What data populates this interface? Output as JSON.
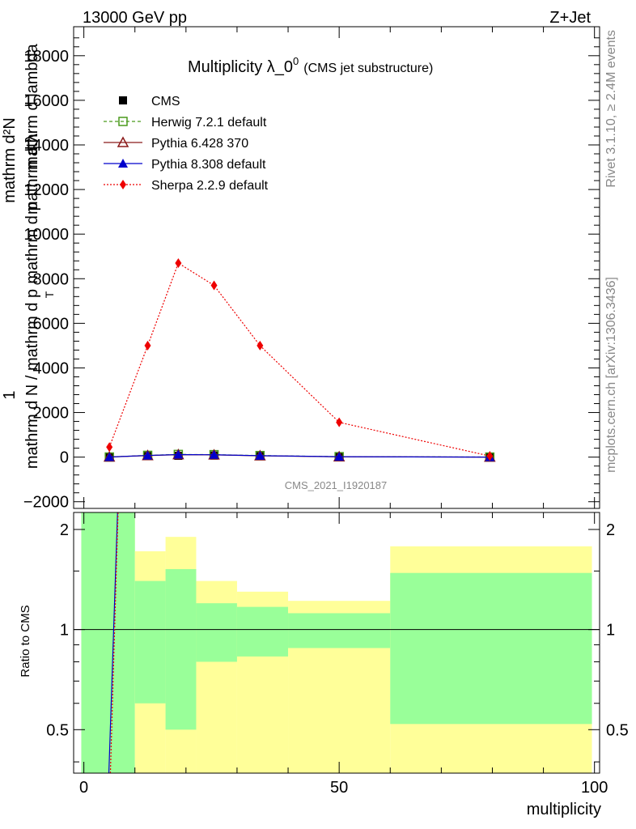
{
  "header": {
    "left": "13000 GeV pp",
    "right": "Z+Jet"
  },
  "side": {
    "rivet": "Rivet 3.1.10, ≥ 2.4M events",
    "mcplots": "mcplots.cern.ch [arXiv:1306.3436]"
  },
  "watermark": "CMS_2021_I1920187",
  "colors": {
    "herwig": "#4a9a1c",
    "pythia6": "#8b1a1a",
    "pythia8": "#0000cc",
    "sherpa": "#ee0000",
    "band_inner": "#99ff99",
    "band_outer": "#ffff99"
  },
  "chart_data": [
    {
      "type": "line",
      "title_main": "Multiplicity λ_0",
      "title_sup": "0",
      "title_suffix": "(CMS jet substructure)",
      "ylabel_parts": [
        "mathrm d²N",
        "1",
        "mathrm d N / mathrm d p",
        "mathrm d p",
        "T",
        "mathrm d λ",
        "mathrm d lambda"
      ],
      "xlim": [
        -2,
        101
      ],
      "ylim": [
        -2300,
        19300
      ],
      "yticks": [
        -2000,
        0,
        2000,
        4000,
        6000,
        8000,
        10000,
        12000,
        14000,
        16000,
        18000
      ],
      "ytick_labels": [
        "−2000",
        "0",
        "2000",
        "4000",
        "6000",
        "8000",
        "10000",
        "12000",
        "14000",
        "16000",
        "18000"
      ],
      "legend_position": "top-left",
      "series": [
        {
          "name": "CMS",
          "marker": "filled-square",
          "x": [
            5,
            12.5,
            18.5,
            25.5,
            34.5,
            50,
            79.5
          ],
          "y": [
            0,
            50,
            60,
            70,
            40,
            10,
            0
          ]
        },
        {
          "name": "Herwig 7.2.1 default",
          "marker": "open-square",
          "line": "dashed",
          "x": [
            5,
            12.5,
            18.5,
            25.5,
            34.5,
            50,
            79.5
          ],
          "y": [
            5,
            80,
            120,
            110,
            70,
            20,
            3
          ]
        },
        {
          "name": "Pythia 6.428 370",
          "marker": "open-triangle",
          "line": "solid",
          "x": [
            5,
            12.5,
            18.5,
            25.5,
            34.5,
            50,
            79.5
          ],
          "y": [
            5,
            70,
            110,
            100,
            60,
            15,
            2
          ]
        },
        {
          "name": "Pythia 8.308 default",
          "marker": "filled-triangle",
          "line": "solid",
          "x": [
            5,
            12.5,
            18.5,
            25.5,
            34.5,
            50,
            79.5
          ],
          "y": [
            5,
            75,
            115,
            105,
            65,
            18,
            2
          ]
        },
        {
          "name": "Sherpa 2.2.9 default",
          "marker": "diamond",
          "line": "dotted",
          "x": [
            5,
            12.5,
            18.5,
            25.5,
            34.5,
            50,
            79.5
          ],
          "y": [
            450,
            5000,
            8700,
            7700,
            5000,
            1560,
            50
          ]
        }
      ]
    },
    {
      "type": "area",
      "ylabel": "Ratio to CMS",
      "xlabel": "multiplicity",
      "xlim": [
        -2,
        101
      ],
      "ylim": [
        0.37,
        2.25
      ],
      "xticks": [
        0,
        50,
        100
      ],
      "xtick_labels": [
        "0",
        "50",
        "100"
      ],
      "yticks": [
        0.5,
        1,
        2
      ],
      "ytick_labels": [
        "0.5",
        "1",
        "2"
      ],
      "bins": [
        {
          "x0": -0.5,
          "x1": 10,
          "inner": [
            0.0,
            10.0
          ],
          "outer": [
            0.0,
            10.0
          ]
        },
        {
          "x0": 10,
          "x1": 16,
          "inner": [
            0.6,
            1.4
          ],
          "outer": [
            0.0,
            1.72
          ]
        },
        {
          "x0": 16,
          "x1": 22,
          "inner": [
            0.5,
            1.52
          ],
          "outer": [
            0.0,
            1.9
          ]
        },
        {
          "x0": 22,
          "x1": 30,
          "inner": [
            0.8,
            1.2
          ],
          "outer": [
            0.0,
            1.4
          ]
        },
        {
          "x0": 30,
          "x1": 40,
          "inner": [
            0.83,
            1.17
          ],
          "outer": [
            0.0,
            1.3
          ]
        },
        {
          "x0": 40,
          "x1": 60,
          "inner": [
            0.88,
            1.12
          ],
          "outer": [
            0.0,
            1.22
          ]
        },
        {
          "x0": 60,
          "x1": 99.5,
          "inner": [
            0.52,
            1.48
          ],
          "outer": [
            0.0,
            1.78
          ]
        }
      ],
      "ratio_lines": [
        {
          "name": "Pythia 8.308 default",
          "x": [
            4.9,
            6.6
          ],
          "y": [
            0.3,
            2.5
          ]
        },
        {
          "name": "Sherpa 2.2.9 default",
          "x": [
            5.2,
            6.7
          ],
          "y": [
            0.3,
            2.5
          ]
        }
      ]
    }
  ]
}
